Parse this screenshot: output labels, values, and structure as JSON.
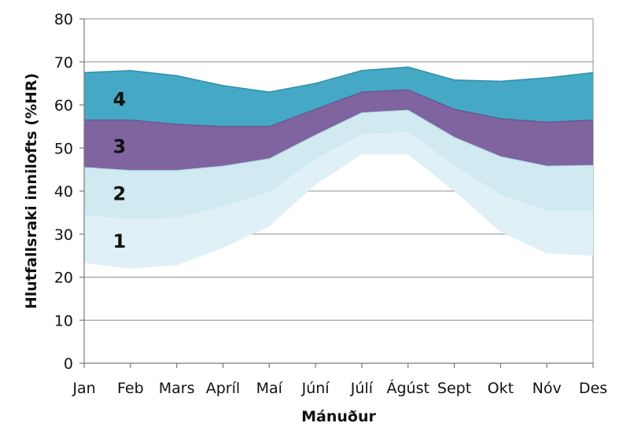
{
  "chart_data": {
    "type": "area",
    "stacked": true,
    "categories": [
      "Jan",
      "Feb",
      "Mars",
      "Apríl",
      "Maí",
      "Júní",
      "Júlí",
      "Ágúst",
      "Sept",
      "Okt",
      "Nóv",
      "Des"
    ],
    "xlabel": "Mánuður",
    "ylabel": "Hlutfallsraki innilofts (%HR)",
    "ylim": [
      0,
      80
    ],
    "yticks": [
      0,
      10,
      20,
      30,
      40,
      50,
      60,
      70,
      80
    ],
    "grid": true,
    "legend": "none",
    "bands": [
      {
        "name": "1",
        "color": "#dff0f6",
        "inner_color": "#cfe8f0",
        "lower": [
          23.3,
          22,
          22.8,
          26.8,
          31.8,
          41.5,
          48.5,
          48.5,
          40,
          30.5,
          25.5,
          25
        ],
        "inner_boundary": [
          34.5,
          33.5,
          33.8,
          36.5,
          39.8,
          47.5,
          53.2,
          53.8,
          46,
          39.2,
          35.5,
          35.5
        ],
        "upper": [
          45.5,
          44.8,
          44.8,
          45.8,
          47.5,
          53,
          58.2,
          58.8,
          52.5,
          48,
          45.8,
          46
        ]
      },
      {
        "name": "2",
        "color": "#b8dfe8",
        "upper": [
          45.5,
          44.8,
          44.8,
          45.8,
          47.5,
          53,
          58.2,
          58.8,
          52.5,
          48,
          45.8,
          46
        ]
      },
      {
        "name": "3",
        "color": "#7f649f",
        "upper": [
          56.5,
          56.5,
          55.5,
          55,
          55,
          59,
          63,
          63.5,
          59,
          56.8,
          56,
          56.5
        ]
      },
      {
        "name": "4",
        "color": "#45a8c4",
        "upper": [
          67.5,
          68,
          66.8,
          64.5,
          63,
          65,
          68,
          68.8,
          65.8,
          65.5,
          66.3,
          67.5
        ]
      }
    ]
  }
}
